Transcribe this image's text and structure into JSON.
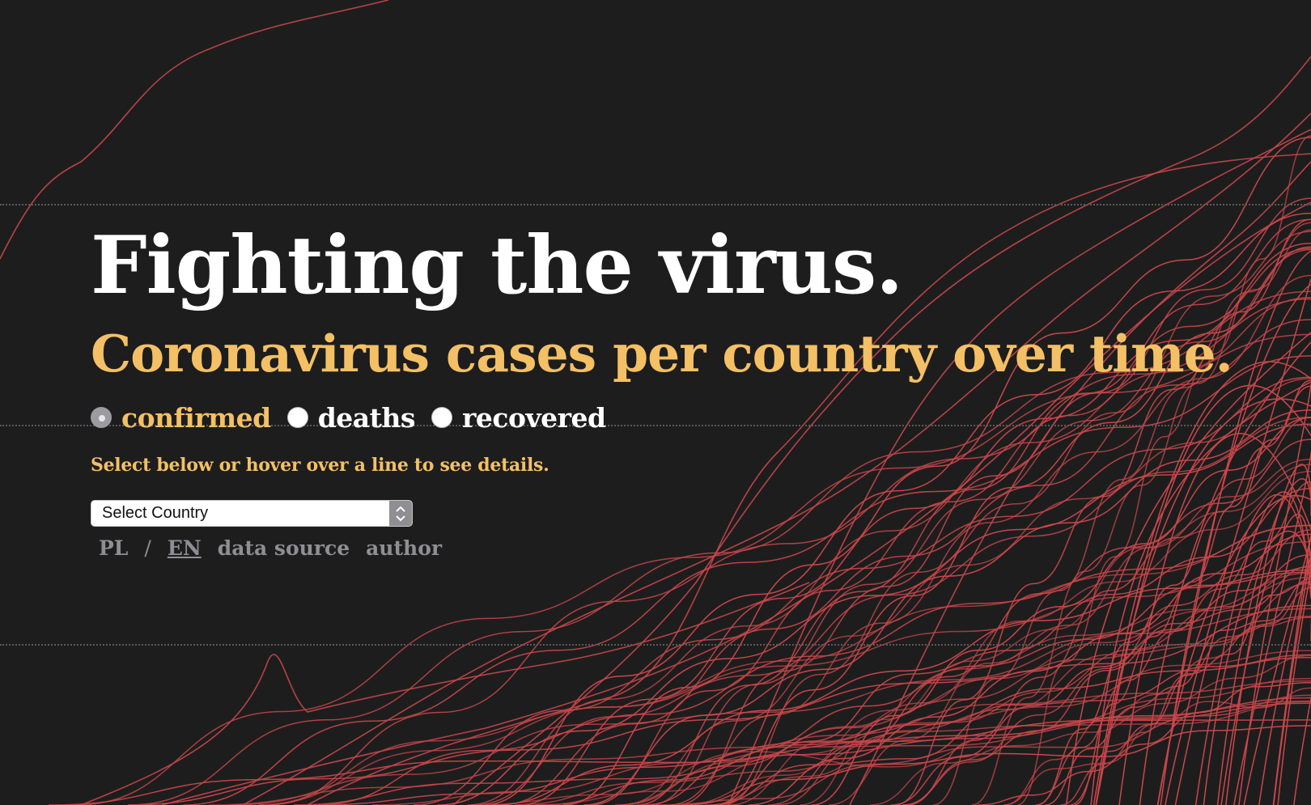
{
  "title": "Fighting the virus.",
  "subtitle": "Coronavirus cases per country over time.",
  "metric_options": [
    {
      "label": "confirmed",
      "checked": true
    },
    {
      "label": "deaths",
      "checked": false
    },
    {
      "label": "recovered",
      "checked": false
    }
  ],
  "hint": "Select below or hover over a line to see details.",
  "country_select": {
    "value": "Select Country"
  },
  "footer_links": {
    "pl": "PL",
    "separator": "/",
    "en": "EN",
    "data_source": "data source",
    "author": "author"
  },
  "colors": {
    "background": "#1d1d1e",
    "accent": "#f4c065",
    "line": "#c9474a",
    "title": "#ffffff"
  },
  "icons": {
    "select_arrow": "updown-chevron-icon"
  }
}
